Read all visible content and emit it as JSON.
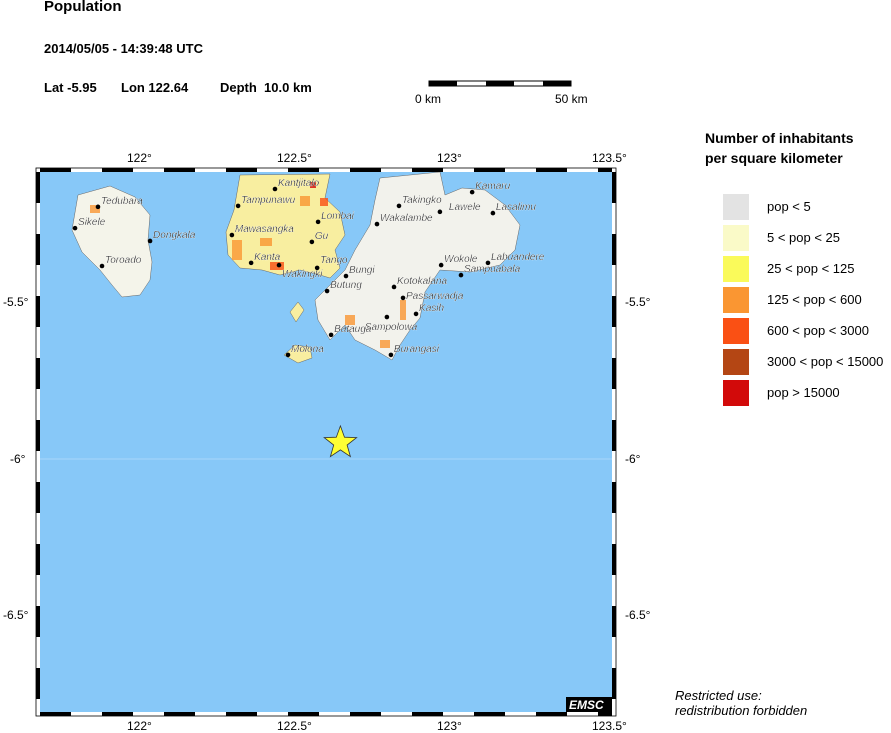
{
  "header": {
    "title": "Population",
    "datetime": "2014/05/05 - 14:39:48 UTC",
    "lat_label": "Lat -5.95",
    "lon_label": "Lon 122.64",
    "depth_label": "Depth  10.0 km"
  },
  "scalebar": {
    "left_label": "0 km",
    "right_label": "50 km"
  },
  "map": {
    "extent": {
      "lon": [
        121.67,
        123.52
      ],
      "lat": [
        -6.81,
        -5.085
      ]
    },
    "ocean_color": "#87c8f8",
    "x_ticks": [
      "122°",
      "122.5°",
      "123°",
      "123.5°"
    ],
    "y_ticks": [
      "-5.5°",
      "-6°",
      "-6.5°"
    ],
    "epicenter": {
      "lon": 122.64,
      "lat": -5.95,
      "icon": "star-icon",
      "color": "#ffff33"
    },
    "cities": [
      {
        "name": "Tedubara",
        "lon": 121.858,
        "lat": -5.196
      },
      {
        "name": "Sikele",
        "lon": 121.784,
        "lat": -5.264
      },
      {
        "name": "Dongkala",
        "lon": 122.026,
        "lat": -5.305
      },
      {
        "name": "Toroado",
        "lon": 121.871,
        "lat": -5.385
      },
      {
        "name": "Kantjitalo",
        "lon": 122.429,
        "lat": -5.139
      },
      {
        "name": "Tampunawu",
        "lon": 122.31,
        "lat": -5.193
      },
      {
        "name": "Lombai",
        "lon": 122.568,
        "lat": -5.244
      },
      {
        "name": "Mawasangka",
        "lon": 122.29,
        "lat": -5.286
      },
      {
        "name": "Gu",
        "lon": 122.548,
        "lat": -5.308
      },
      {
        "name": "Kanta",
        "lon": 122.352,
        "lat": -5.375
      },
      {
        "name": "Wakingki",
        "lon": 122.442,
        "lat": -5.382
      },
      {
        "name": "Tango",
        "lon": 122.565,
        "lat": -5.391
      },
      {
        "name": "Bungi",
        "lon": 122.658,
        "lat": -5.417
      },
      {
        "name": "Butung",
        "lon": 122.597,
        "lat": -5.465
      },
      {
        "name": "Wakalambe",
        "lon": 122.758,
        "lat": -5.251
      },
      {
        "name": "Takingko",
        "lon": 122.829,
        "lat": -5.193
      },
      {
        "name": "Lawele",
        "lon": 122.961,
        "lat": -5.212
      },
      {
        "name": "Kamaru",
        "lon": 123.065,
        "lat": -5.149
      },
      {
        "name": "Lasalimu",
        "lon": 123.132,
        "lat": -5.216
      },
      {
        "name": "Wokole",
        "lon": 122.965,
        "lat": -5.382
      },
      {
        "name": "Labuandere",
        "lon": 123.116,
        "lat": -5.375
      },
      {
        "name": "Sampuabala",
        "lon": 123.029,
        "lat": -5.414
      },
      {
        "name": "Kotokalana",
        "lon": 122.813,
        "lat": -5.452
      },
      {
        "name": "Passarwadja",
        "lon": 122.842,
        "lat": -5.487
      },
      {
        "name": "Kasih",
        "lon": 122.884,
        "lat": -5.538
      },
      {
        "name": "Sampolowa",
        "lon": 122.79,
        "lat": -5.548
      },
      {
        "name": "Batauga",
        "lon": 122.61,
        "lat": -5.605
      },
      {
        "name": "Burangasi",
        "lon": 122.803,
        "lat": -5.669
      },
      {
        "name": "Molona",
        "lon": 122.471,
        "lat": -5.669
      }
    ],
    "watermark": "EMSC"
  },
  "legend": {
    "title_line1": "Number of inhabitants",
    "title_line2": "per square kilometer",
    "items": [
      {
        "label": "pop < 5",
        "color": "#e3e3e3"
      },
      {
        "label": "5 < pop < 25",
        "color": "#fafac8"
      },
      {
        "label": "25 < pop < 125",
        "color": "#fafa5a"
      },
      {
        "label": "125 < pop < 600",
        "color": "#fa9632"
      },
      {
        "label": "600 < pop < 3000",
        "color": "#fa5014"
      },
      {
        "label": "3000 < pop < 15000",
        "color": "#b44614"
      },
      {
        "label": "pop > 15000",
        "color": "#d20a0a"
      }
    ]
  },
  "footer": {
    "line1": "Restricted use:",
    "line2": "redistribution forbidden"
  }
}
